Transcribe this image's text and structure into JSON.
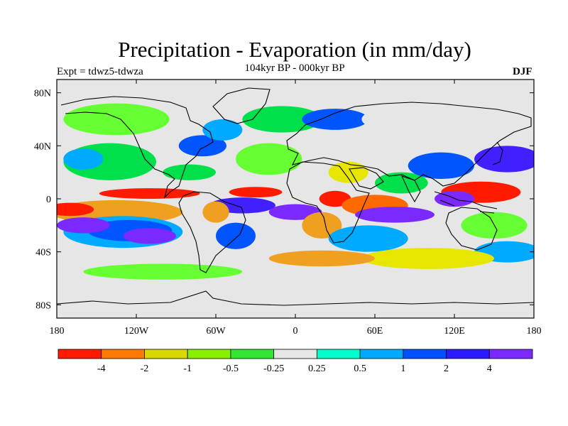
{
  "title": "Precipitation - Evaporation (in mm/day)",
  "subtitle": "104kyr BP - 000kyr BP",
  "left_label": "Expt = tdwz5-tdwza",
  "right_label": "DJF",
  "map": {
    "projection": "cylindrical-equidistant",
    "lon_range": [
      -180,
      180
    ],
    "lat_range": [
      -90,
      90
    ],
    "lon_ticks": [
      {
        "value": -180,
        "label": "180"
      },
      {
        "value": -120,
        "label": "120W"
      },
      {
        "value": -60,
        "label": "60W"
      },
      {
        "value": 0,
        "label": "0"
      },
      {
        "value": 60,
        "label": "60E"
      },
      {
        "value": 120,
        "label": "120E"
      },
      {
        "value": 180,
        "label": "180"
      }
    ],
    "lat_ticks": [
      {
        "value": 80,
        "label": "80N"
      },
      {
        "value": 40,
        "label": "40N"
      },
      {
        "value": 0,
        "label": "0"
      },
      {
        "value": -40,
        "label": "40S"
      },
      {
        "value": -80,
        "label": "80S"
      }
    ],
    "background_color": "#e6e6e6",
    "coastline_color": "#000000",
    "blobs": [
      {
        "lon": -135,
        "lat": -10,
        "rx": 50,
        "ry": 9,
        "color": "#f0a020"
      },
      {
        "lon": -170,
        "lat": -8,
        "rx": 18,
        "ry": 5,
        "color": "#ff1a00"
      },
      {
        "lon": -110,
        "lat": 4,
        "rx": 38,
        "ry": 4,
        "color": "#ff1a00"
      },
      {
        "lon": -130,
        "lat": -25,
        "rx": 45,
        "ry": 12,
        "color": "#00aaff"
      },
      {
        "lon": -125,
        "lat": -24,
        "rx": 32,
        "ry": 8,
        "color": "#0055ff"
      },
      {
        "lon": -110,
        "lat": -28,
        "rx": 20,
        "ry": 6,
        "color": "#7a2aff"
      },
      {
        "lon": -160,
        "lat": -20,
        "rx": 20,
        "ry": 6,
        "color": "#7a2aff"
      },
      {
        "lon": -140,
        "lat": 28,
        "rx": 35,
        "ry": 14,
        "color": "#00e04a"
      },
      {
        "lon": -160,
        "lat": 30,
        "rx": 15,
        "ry": 8,
        "color": "#00aaff"
      },
      {
        "lon": -135,
        "lat": 60,
        "rx": 40,
        "ry": 12,
        "color": "#66ff33"
      },
      {
        "lon": -70,
        "lat": 40,
        "rx": 18,
        "ry": 8,
        "color": "#0055ff"
      },
      {
        "lon": -55,
        "lat": 52,
        "rx": 15,
        "ry": 8,
        "color": "#00aaff"
      },
      {
        "lon": -80,
        "lat": 20,
        "rx": 20,
        "ry": 6,
        "color": "#00e04a"
      },
      {
        "lon": -40,
        "lat": -5,
        "rx": 25,
        "ry": 6,
        "color": "#4020ff"
      },
      {
        "lon": -60,
        "lat": -10,
        "rx": 10,
        "ry": 8,
        "color": "#f0a020"
      },
      {
        "lon": -45,
        "lat": -28,
        "rx": 15,
        "ry": 10,
        "color": "#0055ff"
      },
      {
        "lon": -30,
        "lat": 5,
        "rx": 20,
        "ry": 4,
        "color": "#ff1a00"
      },
      {
        "lon": -20,
        "lat": 30,
        "rx": 25,
        "ry": 12,
        "color": "#66ff33"
      },
      {
        "lon": -10,
        "lat": 60,
        "rx": 30,
        "ry": 10,
        "color": "#00e04a"
      },
      {
        "lon": 30,
        "lat": 60,
        "rx": 25,
        "ry": 8,
        "color": "#0055ff"
      },
      {
        "lon": 0,
        "lat": -10,
        "rx": 20,
        "ry": 6,
        "color": "#7a2aff"
      },
      {
        "lon": 20,
        "lat": -20,
        "rx": 15,
        "ry": 10,
        "color": "#f0a020"
      },
      {
        "lon": 30,
        "lat": 0,
        "rx": 12,
        "ry": 6,
        "color": "#ff1a00"
      },
      {
        "lon": 40,
        "lat": 20,
        "rx": 15,
        "ry": 8,
        "color": "#e6e600"
      },
      {
        "lon": 60,
        "lat": -5,
        "rx": 25,
        "ry": 8,
        "color": "#ff6a00"
      },
      {
        "lon": 75,
        "lat": -12,
        "rx": 30,
        "ry": 6,
        "color": "#7a2aff"
      },
      {
        "lon": 55,
        "lat": -30,
        "rx": 30,
        "ry": 10,
        "color": "#00aaff"
      },
      {
        "lon": 80,
        "lat": 12,
        "rx": 20,
        "ry": 8,
        "color": "#00e04a"
      },
      {
        "lon": 110,
        "lat": 25,
        "rx": 25,
        "ry": 10,
        "color": "#0055ff"
      },
      {
        "lon": 140,
        "lat": 5,
        "rx": 30,
        "ry": 8,
        "color": "#ff1a00"
      },
      {
        "lon": 120,
        "lat": 0,
        "rx": 15,
        "ry": 6,
        "color": "#7a2aff"
      },
      {
        "lon": 160,
        "lat": 30,
        "rx": 25,
        "ry": 10,
        "color": "#4020ff"
      },
      {
        "lon": 150,
        "lat": -20,
        "rx": 25,
        "ry": 10,
        "color": "#66ff33"
      },
      {
        "lon": 160,
        "lat": -40,
        "rx": 25,
        "ry": 8,
        "color": "#00aaff"
      },
      {
        "lon": 100,
        "lat": -45,
        "rx": 50,
        "ry": 8,
        "color": "#e6e600"
      },
      {
        "lon": 20,
        "lat": -45,
        "rx": 40,
        "ry": 6,
        "color": "#f0a020"
      },
      {
        "lon": -100,
        "lat": -55,
        "rx": 60,
        "ry": 6,
        "color": "#66ff33"
      },
      {
        "lon": 100,
        "lat": 60,
        "rx": 50,
        "ry": 12,
        "color": "#e6e6e6"
      },
      {
        "lon": 0,
        "lat": -70,
        "rx": 180,
        "ry": 8,
        "color": "#e6e6e6"
      }
    ]
  },
  "colorbar": {
    "colors": [
      "#ff1a00",
      "#ff7a00",
      "#d8d800",
      "#88f000",
      "#33e633",
      "#e6e6e6",
      "#00ffcc",
      "#00aaff",
      "#0050ff",
      "#2a1aff",
      "#7a2aff"
    ],
    "labels": [
      "-4",
      "-2",
      "-1",
      "-0.5",
      "-0.25",
      "0.25",
      "0.5",
      "1",
      "2",
      "4"
    ]
  }
}
